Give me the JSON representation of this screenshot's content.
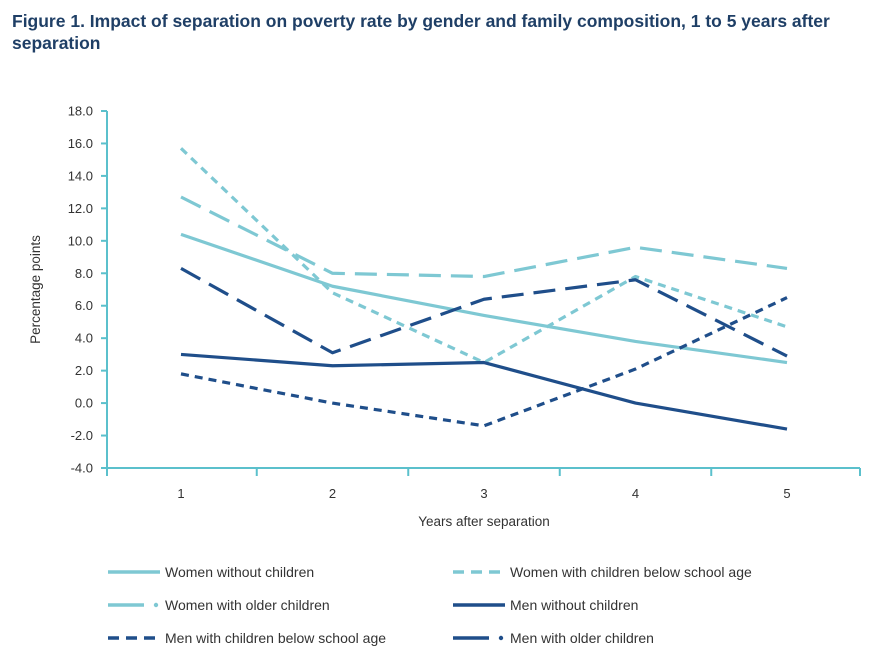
{
  "figure": {
    "title": "Figure 1. Impact of separation on poverty rate by gender and family composition, 1 to 5 years after separation"
  },
  "chart_data": {
    "type": "line",
    "xlabel": "Years after separation",
    "ylabel": "Percentage points",
    "x": [
      1,
      2,
      3,
      4,
      5
    ],
    "x_tick_labels": [
      "1",
      "2",
      "3",
      "4",
      "5"
    ],
    "ylim": [
      -4.0,
      18.0
    ],
    "y_ticks": [
      -4.0,
      -2.0,
      0.0,
      2.0,
      4.0,
      6.0,
      8.0,
      10.0,
      12.0,
      14.0,
      16.0,
      18.0
    ],
    "y_tick_labels": [
      "-4.0",
      "-2.0",
      "0.0",
      "2.0",
      "4.0",
      "6.0",
      "8.0",
      "10.0",
      "12.0",
      "14.0",
      "16.0",
      "18.0"
    ],
    "grid": false,
    "legend_position": "bottom",
    "series": [
      {
        "name": "Women without children",
        "values": [
          10.4,
          7.2,
          5.4,
          3.8,
          2.5
        ],
        "color": "#7ec8d3",
        "style": "solid"
      },
      {
        "name": "Women with children below school age",
        "values": [
          15.7,
          6.8,
          2.5,
          7.8,
          4.7
        ],
        "color": "#7ec8d3",
        "style": "short-dash"
      },
      {
        "name": "Women with older children",
        "values": [
          12.7,
          8.0,
          7.8,
          9.6,
          8.3
        ],
        "color": "#7ec8d3",
        "style": "long-dash-dot"
      },
      {
        "name": "Men without children",
        "values": [
          3.0,
          2.3,
          2.5,
          0.0,
          -1.6
        ],
        "color": "#1f4e8a",
        "style": "solid"
      },
      {
        "name": "Men with children below school age",
        "values": [
          1.8,
          0.0,
          -1.4,
          2.1,
          6.5
        ],
        "color": "#1f4e8a",
        "style": "short-dash"
      },
      {
        "name": "Men with older children",
        "values": [
          8.3,
          3.1,
          6.4,
          7.6,
          2.9
        ],
        "color": "#1f4e8a",
        "style": "long-dash-dot"
      }
    ]
  }
}
